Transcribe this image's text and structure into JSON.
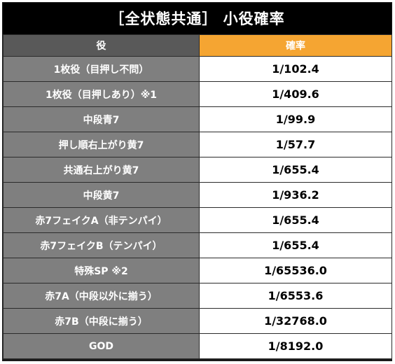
{
  "title": "［全状態共通］ 小役確率",
  "header": {
    "role": "役",
    "probability": "確率"
  },
  "rows": [
    {
      "role": "1枚役（目押し不問）",
      "probability": "1/102.4"
    },
    {
      "role": "1枚役（目押しあり）※1",
      "probability": "1/409.6"
    },
    {
      "role": "中段青7",
      "probability": "1/99.9"
    },
    {
      "role": "押し順右上がり黄7",
      "probability": "1/57.7"
    },
    {
      "role": "共通右上がり黄7",
      "probability": "1/655.4"
    },
    {
      "role": "中段黄7",
      "probability": "1/936.2"
    },
    {
      "role": "赤7フェイクA（非テンパイ）",
      "probability": "1/655.4"
    },
    {
      "role": "赤7フェイクB（テンパイ）",
      "probability": "1/655.4"
    },
    {
      "role": "特殊SP ※2",
      "probability": "1/65536.0"
    },
    {
      "role": "赤7A（中段以外に揃う）",
      "probability": "1/6553.6"
    },
    {
      "role": "赤7B（中段に揃う）",
      "probability": "1/32768.0"
    },
    {
      "role": "GOD",
      "probability": "1/8192.0"
    }
  ],
  "colors": {
    "title_bg": "#000000",
    "header_role_bg": "#595959",
    "header_prob_bg": "#f5a532",
    "role_cell_bg": "#7f7f7f",
    "prob_cell_bg": "#ffffff"
  }
}
